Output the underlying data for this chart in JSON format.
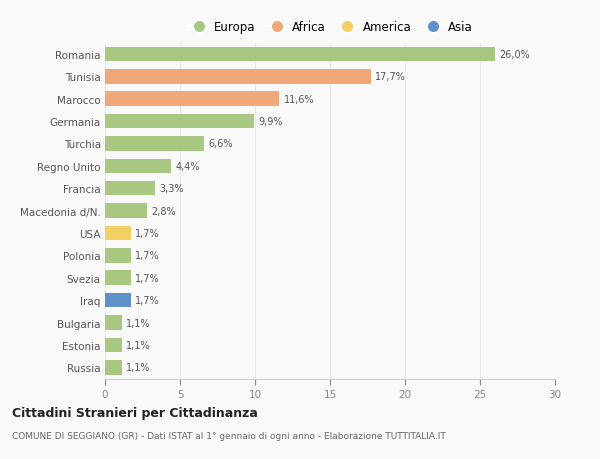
{
  "countries": [
    "Romania",
    "Tunisia",
    "Marocco",
    "Germania",
    "Turchia",
    "Regno Unito",
    "Francia",
    "Macedonia d/N.",
    "USA",
    "Polonia",
    "Svezia",
    "Iraq",
    "Bulgaria",
    "Estonia",
    "Russia"
  ],
  "values": [
    26.0,
    17.7,
    11.6,
    9.9,
    6.6,
    4.4,
    3.3,
    2.8,
    1.7,
    1.7,
    1.7,
    1.7,
    1.1,
    1.1,
    1.1
  ],
  "labels": [
    "26,0%",
    "17,7%",
    "11,6%",
    "9,9%",
    "6,6%",
    "4,4%",
    "3,3%",
    "2,8%",
    "1,7%",
    "1,7%",
    "1,7%",
    "1,7%",
    "1,1%",
    "1,1%",
    "1,1%"
  ],
  "categories": [
    "Europa",
    "Africa",
    "America",
    "Asia"
  ],
  "colors": {
    "Europa": "#a8c882",
    "Africa": "#f0a878",
    "America": "#f0d060",
    "Asia": "#6090c8"
  },
  "bar_categories": [
    "Europa",
    "Africa",
    "Africa",
    "Europa",
    "Europa",
    "Europa",
    "Europa",
    "Europa",
    "America",
    "Europa",
    "Europa",
    "Asia",
    "Europa",
    "Europa",
    "Europa"
  ],
  "title": "Cittadini Stranieri per Cittadinanza",
  "subtitle": "COMUNE DI SEGGIANO (GR) - Dati ISTAT al 1° gennaio di ogni anno - Elaborazione TUTTITALIA.IT",
  "xlim": [
    0,
    30
  ],
  "xticks": [
    0,
    5,
    10,
    15,
    20,
    25,
    30
  ],
  "bg_color": "#f9f9f9",
  "grid_color": "#e8e8e8",
  "legend_marker_colors": [
    "#a8c882",
    "#f0a878",
    "#f0d060",
    "#6090c8"
  ]
}
